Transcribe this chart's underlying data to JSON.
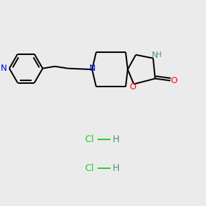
{
  "bg_color": "#ebebeb",
  "bond_color": "#000000",
  "N_color": "#0000ee",
  "O_color": "#ff0000",
  "H_color": "#4a9090",
  "Cl_color": "#33cc33",
  "lw": 1.5,
  "dbo": 0.008,
  "hcl1": [
    0.5,
    0.32
  ],
  "hcl2": [
    0.5,
    0.18
  ]
}
